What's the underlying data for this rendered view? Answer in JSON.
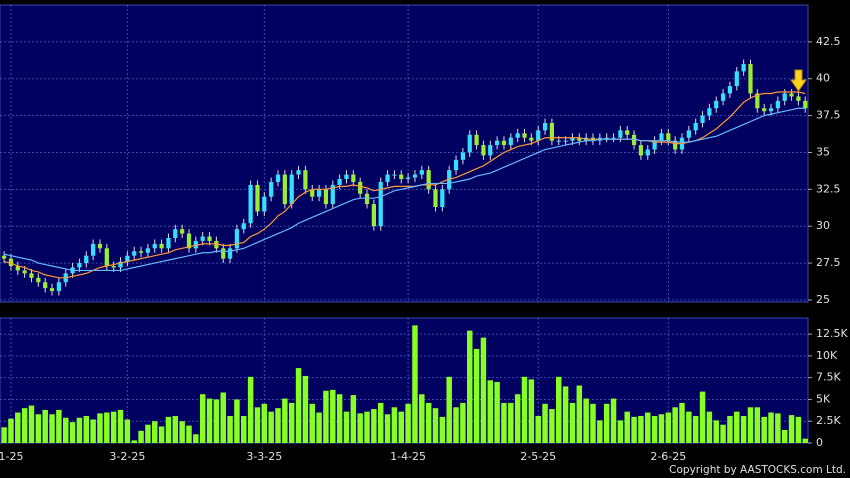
{
  "chart_data": [
    {
      "type": "candlestick",
      "categories": [
        null,
        "1-25",
        null,
        null,
        null,
        null,
        null,
        null,
        null,
        null,
        null,
        null,
        null,
        null,
        null,
        null,
        null,
        null,
        "3-2-25",
        null,
        null,
        null,
        null,
        null,
        null,
        null,
        null,
        null,
        null,
        null,
        null,
        null,
        null,
        null,
        null,
        null,
        null,
        null,
        "3-3-25",
        null,
        null,
        null,
        null,
        null,
        null,
        null,
        null,
        null,
        null,
        null,
        null,
        null,
        null,
        null,
        null,
        null,
        null,
        null,
        null,
        "1-4-25",
        null,
        null,
        null,
        null,
        null,
        null,
        null,
        null,
        null,
        null,
        null,
        null,
        null,
        null,
        null,
        null,
        null,
        null,
        "2-5-25",
        null,
        null,
        null,
        null,
        null,
        null,
        null,
        null,
        null,
        null,
        null,
        null,
        null,
        null,
        null,
        null,
        null,
        null,
        "2-6-25",
        null,
        null,
        null,
        null,
        null,
        null,
        null,
        null,
        null,
        null,
        null,
        null,
        null,
        null,
        null,
        null,
        null,
        null,
        null,
        null
      ],
      "open": [
        28.0,
        27.8,
        27.3,
        27.0,
        26.8,
        26.5,
        26.2,
        25.8,
        25.6,
        26.2,
        26.8,
        27.2,
        27.5,
        28.0,
        28.8,
        28.5,
        27.3,
        27.2,
        27.6,
        28.0,
        28.3,
        28.2,
        28.5,
        28.8,
        28.5,
        29.2,
        29.8,
        29.5,
        28.5,
        29.0,
        29.3,
        29.0,
        28.5,
        27.8,
        28.5,
        29.8,
        30.2,
        32.8,
        31.0,
        32.0,
        33.0,
        33.5,
        31.5,
        33.5,
        33.8,
        32.5,
        32.0,
        32.5,
        31.5,
        32.8,
        33.2,
        33.5,
        33.0,
        32.2,
        31.5,
        30.0,
        33.0,
        33.5,
        33.5,
        33.2,
        33.3,
        33.5,
        33.8,
        32.5,
        31.3,
        32.5,
        33.8,
        34.5,
        35.0,
        36.2,
        35.5,
        34.8,
        35.5,
        35.8,
        35.5,
        36.0,
        36.3,
        36.0,
        35.8,
        36.5,
        37.0,
        35.8,
        35.8,
        35.8,
        36.0,
        35.8,
        36.0,
        35.8,
        36.0,
        36.0,
        36.0,
        36.5,
        36.2,
        35.5,
        34.8,
        35.2,
        35.8,
        36.3,
        35.8,
        35.2,
        36.0,
        36.5,
        37.0,
        37.5,
        38.0,
        38.5,
        39.0,
        39.5,
        40.5,
        41.0,
        39.0,
        38.0,
        37.8,
        38.0,
        38.5,
        39.0,
        38.8,
        38.5
      ],
      "high": [
        28.3,
        28.1,
        27.6,
        27.3,
        27.1,
        26.8,
        26.5,
        26.1,
        26.5,
        27.1,
        27.5,
        27.8,
        28.3,
        29.1,
        29.1,
        28.8,
        27.6,
        27.9,
        28.3,
        28.6,
        28.6,
        28.8,
        29.1,
        29.1,
        29.5,
        30.1,
        30.1,
        29.8,
        29.3,
        29.6,
        29.6,
        29.3,
        28.8,
        28.8,
        30.1,
        30.5,
        33.1,
        33.1,
        32.3,
        33.3,
        33.8,
        33.8,
        33.8,
        34.1,
        34.1,
        32.8,
        32.8,
        32.8,
        33.1,
        33.5,
        33.8,
        33.8,
        33.3,
        32.5,
        31.8,
        33.3,
        33.8,
        33.8,
        33.8,
        33.6,
        33.8,
        34.1,
        34.1,
        32.8,
        32.8,
        34.1,
        34.8,
        35.3,
        36.5,
        36.5,
        35.8,
        35.8,
        36.1,
        36.1,
        36.3,
        36.6,
        36.6,
        36.3,
        36.8,
        37.3,
        37.3,
        36.1,
        36.1,
        36.3,
        36.3,
        36.3,
        36.3,
        36.3,
        36.3,
        36.3,
        36.8,
        36.8,
        36.5,
        35.8,
        35.5,
        36.1,
        36.6,
        36.6,
        36.1,
        36.3,
        36.8,
        37.3,
        37.8,
        38.3,
        38.8,
        39.3,
        39.8,
        40.8,
        41.3,
        41.3,
        39.3,
        38.3,
        38.3,
        38.8,
        39.3,
        39.3,
        39.1,
        38.8
      ],
      "low": [
        27.5,
        27.0,
        26.7,
        26.5,
        26.2,
        25.9,
        25.5,
        25.3,
        25.3,
        25.9,
        26.5,
        26.9,
        27.2,
        27.7,
        28.2,
        27.0,
        26.9,
        26.9,
        27.3,
        27.7,
        27.9,
        27.9,
        28.2,
        28.2,
        28.2,
        28.9,
        29.2,
        28.2,
        28.2,
        28.7,
        28.7,
        28.2,
        27.5,
        27.5,
        28.2,
        29.5,
        29.9,
        30.7,
        30.7,
        31.7,
        32.7,
        31.2,
        31.2,
        33.2,
        32.2,
        31.7,
        31.7,
        31.2,
        31.2,
        32.5,
        32.9,
        32.7,
        31.9,
        31.2,
        29.7,
        29.7,
        32.7,
        33.2,
        32.9,
        32.9,
        33.0,
        33.2,
        32.2,
        31.0,
        31.0,
        32.2,
        33.5,
        34.2,
        34.7,
        35.2,
        34.5,
        34.5,
        35.2,
        35.2,
        35.2,
        35.7,
        35.7,
        35.5,
        35.5,
        36.2,
        35.5,
        35.5,
        35.5,
        35.5,
        35.5,
        35.5,
        35.5,
        35.5,
        35.7,
        35.7,
        35.7,
        35.9,
        35.2,
        34.5,
        34.5,
        34.9,
        35.5,
        35.5,
        34.9,
        34.9,
        35.7,
        36.2,
        36.7,
        37.2,
        37.7,
        38.2,
        38.7,
        39.2,
        40.2,
        38.7,
        37.7,
        37.5,
        37.5,
        37.7,
        38.2,
        38.5,
        38.2,
        37.7
      ],
      "close": [
        27.8,
        27.3,
        27.0,
        26.8,
        26.5,
        26.2,
        25.8,
        25.6,
        26.2,
        26.8,
        27.2,
        27.5,
        28.0,
        28.8,
        28.5,
        27.3,
        27.2,
        27.6,
        28.0,
        28.3,
        28.2,
        28.5,
        28.8,
        28.5,
        29.2,
        29.8,
        29.5,
        28.5,
        29.0,
        29.3,
        29.0,
        28.5,
        27.8,
        28.5,
        29.8,
        30.2,
        32.8,
        31.0,
        32.0,
        33.0,
        33.5,
        31.5,
        33.5,
        33.8,
        32.5,
        32.0,
        32.5,
        31.5,
        32.8,
        33.2,
        33.5,
        33.0,
        32.2,
        31.5,
        30.0,
        33.0,
        33.5,
        33.5,
        33.2,
        33.3,
        33.5,
        33.8,
        32.5,
        31.3,
        32.5,
        33.8,
        34.5,
        35.0,
        36.2,
        35.5,
        34.8,
        35.5,
        35.8,
        35.5,
        36.0,
        36.3,
        36.0,
        35.8,
        36.5,
        37.0,
        35.8,
        35.8,
        35.8,
        36.0,
        35.8,
        36.0,
        35.8,
        36.0,
        36.0,
        36.0,
        36.5,
        36.2,
        35.5,
        34.8,
        35.2,
        35.8,
        36.3,
        35.8,
        35.2,
        36.0,
        36.5,
        37.0,
        37.5,
        38.0,
        38.5,
        39.0,
        39.5,
        40.5,
        41.0,
        39.0,
        38.0,
        37.8,
        38.0,
        38.5,
        39.0,
        38.8,
        38.5,
        38.0
      ],
      "up_color": "#33e0ff",
      "down_color": "#99ee33",
      "series": [
        {
          "color": "#ff9933",
          "values": [
            27.6,
            27.5,
            27.3,
            27.2,
            27.0,
            26.9,
            26.7,
            26.6,
            26.5,
            26.5,
            26.6,
            26.7,
            26.8,
            27.0,
            27.2,
            27.3,
            27.4,
            27.5,
            27.6,
            27.7,
            27.8,
            27.9,
            28.0,
            28.1,
            28.2,
            28.4,
            28.5,
            28.6,
            28.7,
            28.8,
            28.8,
            28.8,
            28.7,
            28.7,
            28.8,
            28.9,
            29.3,
            29.5,
            29.8,
            30.2,
            30.7,
            31.0,
            31.5,
            32.0,
            32.3,
            32.5,
            32.5,
            32.5,
            32.6,
            32.7,
            32.7,
            32.8,
            32.7,
            32.6,
            32.4,
            32.5,
            32.6,
            32.7,
            32.7,
            32.7,
            32.7,
            32.8,
            32.8,
            32.8,
            33.0,
            33.2,
            33.3,
            33.5,
            33.7,
            33.9,
            34.1,
            34.4,
            34.7,
            35.0,
            35.2,
            35.4,
            35.5,
            35.6,
            35.8,
            36.0,
            36.0,
            36.0,
            36.0,
            36.0,
            36.0,
            35.9,
            35.9,
            35.9,
            35.9,
            35.9,
            35.9,
            35.9,
            35.9,
            35.8,
            35.8,
            35.7,
            35.7,
            35.7,
            35.6,
            35.6,
            35.7,
            35.8,
            36.0,
            36.3,
            36.6,
            37.0,
            37.4,
            37.9,
            38.4,
            38.7,
            38.9,
            39.0,
            39.0,
            39.1,
            39.1,
            39.1,
            39.1,
            39.0
          ]
        },
        {
          "color": "#66b8ff",
          "values": [
            28.1,
            28.0,
            27.9,
            27.8,
            27.7,
            27.5,
            27.4,
            27.3,
            27.2,
            27.1,
            27.0,
            27.0,
            27.0,
            27.0,
            27.0,
            27.0,
            27.0,
            27.0,
            27.1,
            27.2,
            27.3,
            27.4,
            27.5,
            27.6,
            27.7,
            27.8,
            27.9,
            28.0,
            28.1,
            28.2,
            28.2,
            28.3,
            28.3,
            28.3,
            28.4,
            28.5,
            28.7,
            28.9,
            29.1,
            29.3,
            29.5,
            29.7,
            29.9,
            30.2,
            30.4,
            30.6,
            30.8,
            31.0,
            31.2,
            31.4,
            31.6,
            31.8,
            31.9,
            31.9,
            31.9,
            32.0,
            32.2,
            32.4,
            32.5,
            32.6,
            32.7,
            32.8,
            32.9,
            32.9,
            32.9,
            32.9,
            33.0,
            33.1,
            33.2,
            33.4,
            33.5,
            33.6,
            33.8,
            34.0,
            34.2,
            34.4,
            34.6,
            34.8,
            35.0,
            35.2,
            35.3,
            35.4,
            35.5,
            35.6,
            35.7,
            35.8,
            35.8,
            35.9,
            35.9,
            35.9,
            35.9,
            35.9,
            35.9,
            35.8,
            35.8,
            35.8,
            35.8,
            35.8,
            35.7,
            35.7,
            35.7,
            35.8,
            35.9,
            36.0,
            36.1,
            36.3,
            36.5,
            36.7,
            36.9,
            37.1,
            37.3,
            37.5,
            37.6,
            37.7,
            37.8,
            37.9,
            38.0,
            38.0
          ]
        }
      ],
      "ylim": [
        24.86,
        45
      ],
      "yticks": [
        25,
        27.5,
        30,
        32.5,
        35,
        37.5,
        40,
        42.5
      ],
      "grid": true
    },
    {
      "type": "bar",
      "values": [
        1800,
        2800,
        3500,
        4000,
        4300,
        3300,
        3800,
        3300,
        3800,
        2900,
        2400,
        2900,
        3100,
        2700,
        3400,
        3500,
        3600,
        3800,
        2700,
        300,
        1400,
        2100,
        2500,
        1900,
        3000,
        3100,
        2500,
        2000,
        1000,
        5600,
        5100,
        5000,
        5800,
        3100,
        5000,
        3100,
        7600,
        4100,
        4500,
        3600,
        4000,
        5100,
        4600,
        8600,
        7700,
        4500,
        3500,
        6000,
        6100,
        5600,
        3600,
        5500,
        3400,
        3600,
        3900,
        4600,
        3300,
        4100,
        3600,
        4500,
        13500,
        5600,
        4600,
        4000,
        3000,
        7600,
        4100,
        4600,
        12900,
        10800,
        12100,
        7200,
        7000,
        4600,
        4600,
        5600,
        7600,
        7300,
        3100,
        4500,
        3900,
        7600,
        6500,
        4600,
        6600,
        5100,
        4500,
        2600,
        4500,
        5100,
        2600,
        3600,
        3000,
        3100,
        3500,
        3100,
        3300,
        3500,
        4100,
        4600,
        3600,
        3100,
        5900,
        3600,
        2600,
        2100,
        3100,
        3600,
        3100,
        4100,
        4100,
        3000,
        3500,
        3400,
        1500,
        3200,
        3000,
        500
      ],
      "color": "#88ff22",
      "ylim": [
        0,
        14350
      ],
      "yticks": [
        0,
        {
          "value": 2500,
          "label": "2.5K"
        },
        {
          "value": 5000,
          "label": "5K"
        },
        {
          "value": 7500,
          "label": "7.5K"
        },
        {
          "value": 10000,
          "label": "10K"
        },
        {
          "value": 12500,
          "label": "12.5K"
        }
      ],
      "grid": true
    }
  ],
  "footer": "Copyright by AASTOCKS.com Ltd."
}
